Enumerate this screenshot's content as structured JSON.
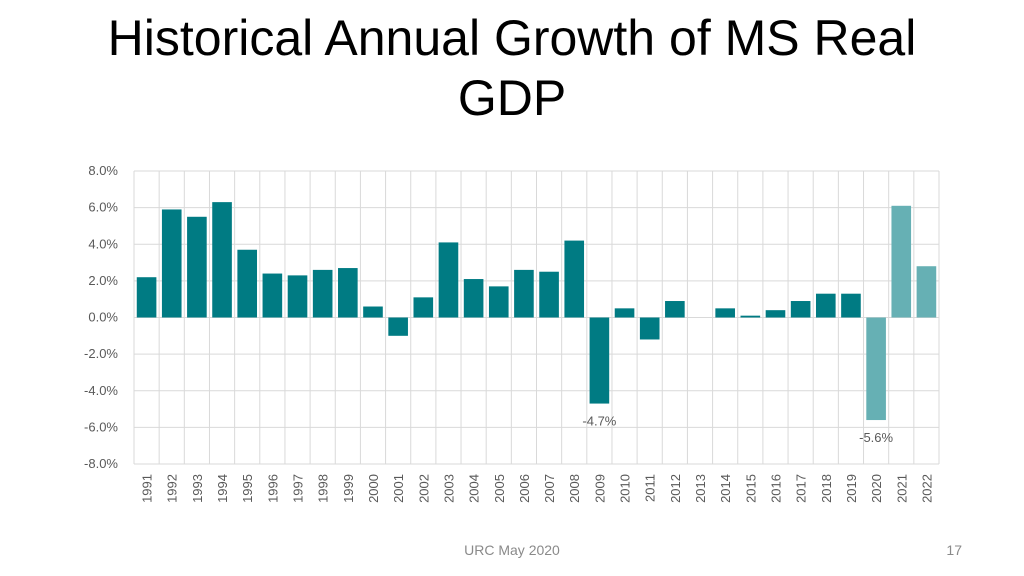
{
  "slide": {
    "title": "Historical Annual Growth of MS Real GDP",
    "footer": "URC May 2020",
    "page_number": "17"
  },
  "colors": {
    "actual": "#007b83",
    "forecast": "#66b0b4",
    "grid": "#d9d9d9",
    "axis_text": "#595959"
  },
  "chart_data": {
    "type": "bar",
    "title": "",
    "xlabel": "",
    "ylabel": "",
    "ylim": [
      -8.0,
      8.0
    ],
    "y_ticks": [
      8,
      6,
      4,
      2,
      0,
      -2,
      -4,
      -6,
      -8
    ],
    "y_tick_labels": [
      "8.0%",
      "6.0%",
      "4.0%",
      "2.0%",
      "0.0%",
      "-2.0%",
      "-4.0%",
      "-6.0%",
      "-8.0%"
    ],
    "categories": [
      "1991",
      "1992",
      "1993",
      "1994",
      "1995",
      "1996",
      "1997",
      "1998",
      "1999",
      "2000",
      "2001",
      "2002",
      "2003",
      "2004",
      "2005",
      "2006",
      "2007",
      "2008",
      "2009",
      "2010",
      "2011",
      "2012",
      "2013",
      "2014",
      "2015",
      "2016",
      "2017",
      "2018",
      "2019",
      "2020",
      "2021",
      "2022"
    ],
    "values": [
      2.2,
      5.9,
      5.5,
      6.3,
      3.7,
      2.4,
      2.3,
      2.6,
      2.7,
      0.6,
      -1.0,
      1.1,
      4.1,
      2.1,
      1.7,
      2.6,
      2.5,
      4.2,
      -4.7,
      0.5,
      -1.2,
      0.9,
      0.0,
      0.5,
      0.1,
      0.4,
      0.9,
      1.3,
      1.3,
      -5.6,
      6.1,
      2.8
    ],
    "forecast_from": "2020",
    "data_labels": [
      {
        "category": "2009",
        "text": "-4.7%"
      },
      {
        "category": "2020",
        "text": "-5.6%"
      }
    ],
    "grid": true
  }
}
